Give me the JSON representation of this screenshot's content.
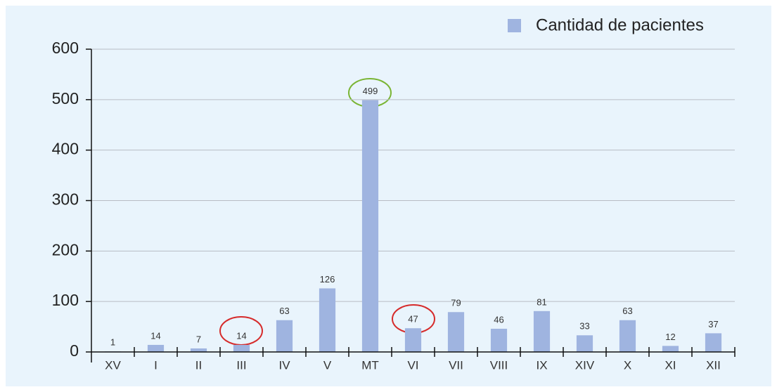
{
  "chart_data": {
    "type": "bar",
    "categories": [
      "XV",
      "I",
      "II",
      "III",
      "IV",
      "V",
      "MT",
      "VI",
      "VII",
      "VIII",
      "IX",
      "XIV",
      "X",
      "XI",
      "XII"
    ],
    "series": [
      {
        "name": "Cantidad de pacientes",
        "color": "#9fb4e0",
        "values": [
          1,
          14,
          7,
          14,
          63,
          126,
          499,
          47,
          79,
          46,
          81,
          33,
          63,
          12,
          37
        ]
      }
    ],
    "ylim": [
      0,
      600
    ],
    "yticks": [
      0,
      100,
      200,
      300,
      400,
      500,
      600
    ],
    "grid": true,
    "legend": "top-right"
  }
}
